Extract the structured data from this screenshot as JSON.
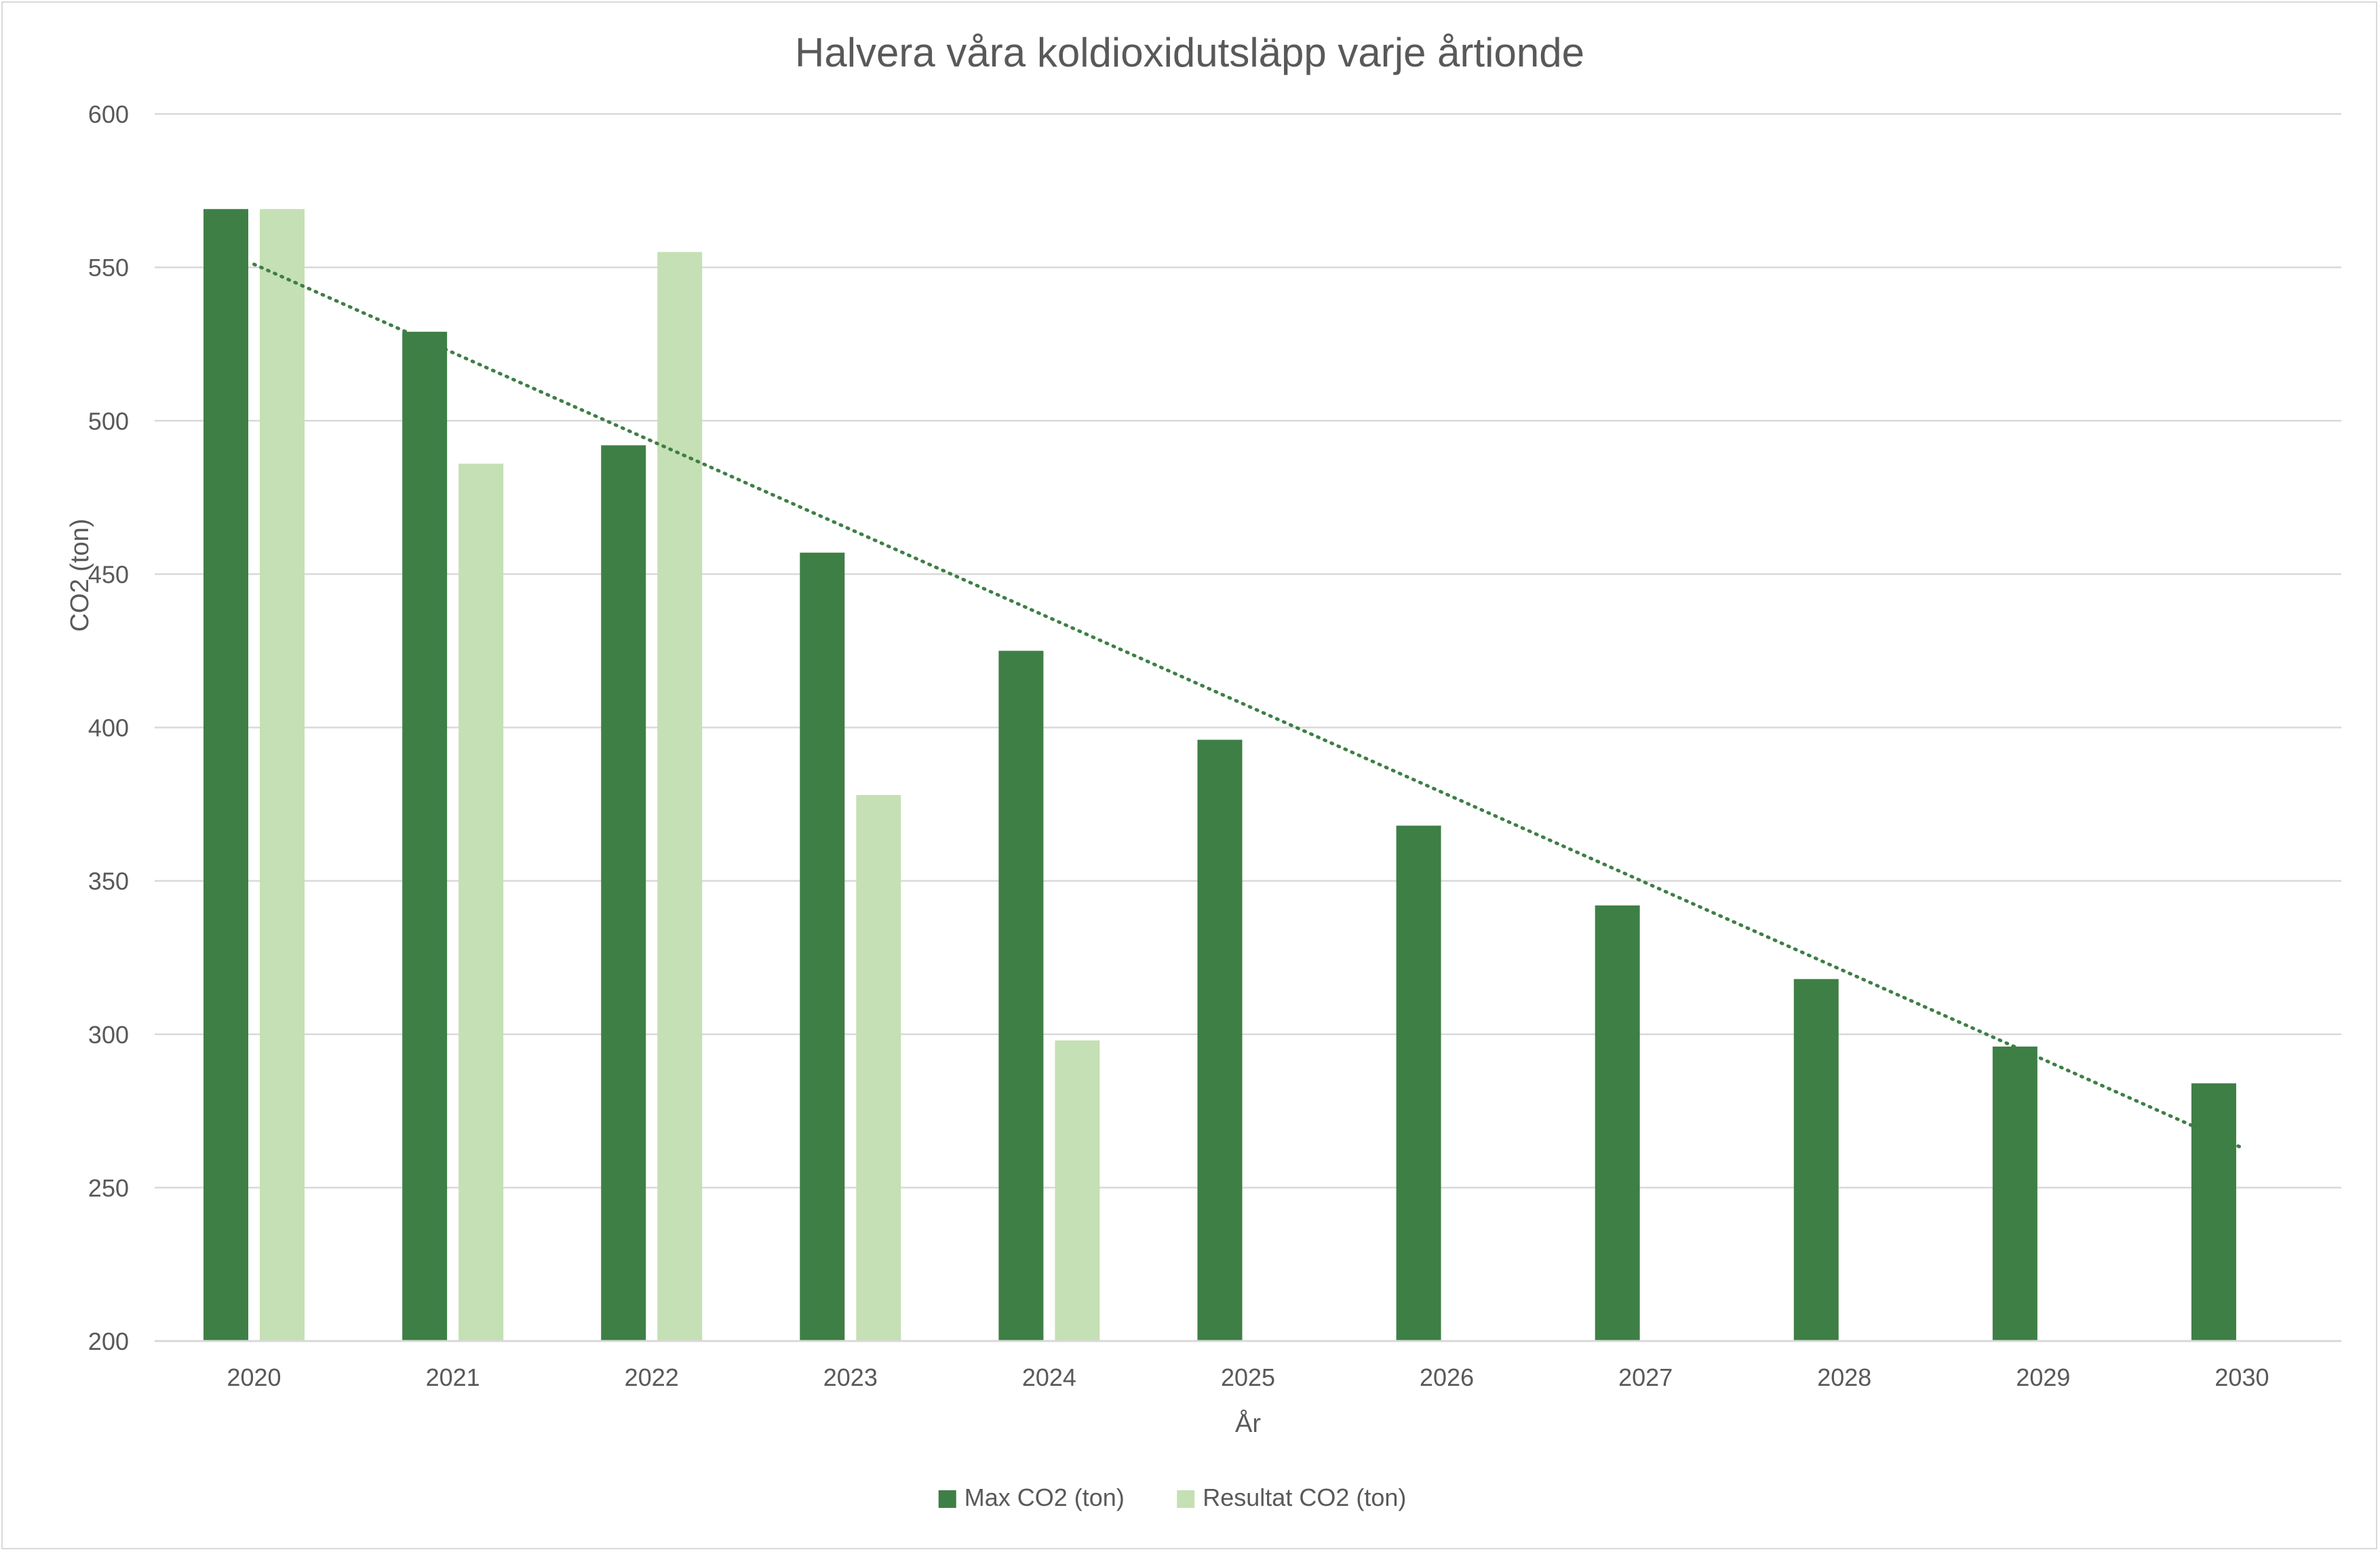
{
  "chart_data": {
    "type": "bar",
    "title": "Halvera våra koldioxidutsläpp varje årtionde",
    "xlabel": "År",
    "ylabel": "CO2 (ton)",
    "ylim": [
      200,
      600
    ],
    "y_ticks": [
      200,
      250,
      300,
      350,
      400,
      450,
      500,
      550,
      600
    ],
    "grid": "horizontal",
    "legend_position": "bottom",
    "categories": [
      "2020",
      "2021",
      "2022",
      "2023",
      "2024",
      "2025",
      "2026",
      "2027",
      "2028",
      "2029",
      "2030"
    ],
    "series": [
      {
        "name": "Max CO2 (ton)",
        "color": "#3e7f46",
        "values": [
          569,
          529,
          492,
          457,
          425,
          396,
          368,
          342,
          318,
          296,
          284
        ]
      },
      {
        "name": "Resultat CO2 (ton)",
        "color": "#c5e0b4",
        "values": [
          569,
          486,
          555,
          378,
          298,
          null,
          null,
          null,
          null,
          null,
          null
        ]
      }
    ],
    "trendline": {
      "type": "linear",
      "series": "Max CO2 (ton)",
      "style": "dotted",
      "color": "#3e7f46",
      "start": 551,
      "end": 263
    }
  }
}
